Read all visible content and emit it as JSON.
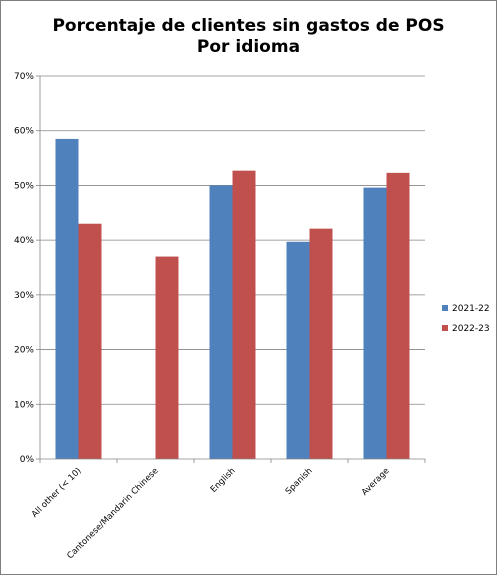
{
  "chart_data": {
    "type": "bar",
    "title": [
      "Porcentaje de clientes sin gastos de POS",
      "Por idioma"
    ],
    "categories": [
      "All other (< 10)",
      "Cantonese/Mandarin Chinese",
      "English",
      "Spanish",
      "Average"
    ],
    "series": [
      {
        "name": "2021-22",
        "color": "#4f81bd",
        "values": [
          0.585,
          null,
          0.5,
          0.397,
          0.496
        ]
      },
      {
        "name": "2022-23",
        "color": "#c0504d",
        "values": [
          0.43,
          0.37,
          0.527,
          0.421,
          0.523
        ]
      }
    ],
    "ylim": [
      0,
      0.7
    ],
    "yticks": [
      0,
      0.1,
      0.2,
      0.3,
      0.4,
      0.5,
      0.6,
      0.7
    ],
    "ytick_labels": [
      "0%",
      "10%",
      "20%",
      "30%",
      "40%",
      "50%",
      "60%",
      "70%"
    ],
    "grid": true,
    "legend": "right"
  }
}
